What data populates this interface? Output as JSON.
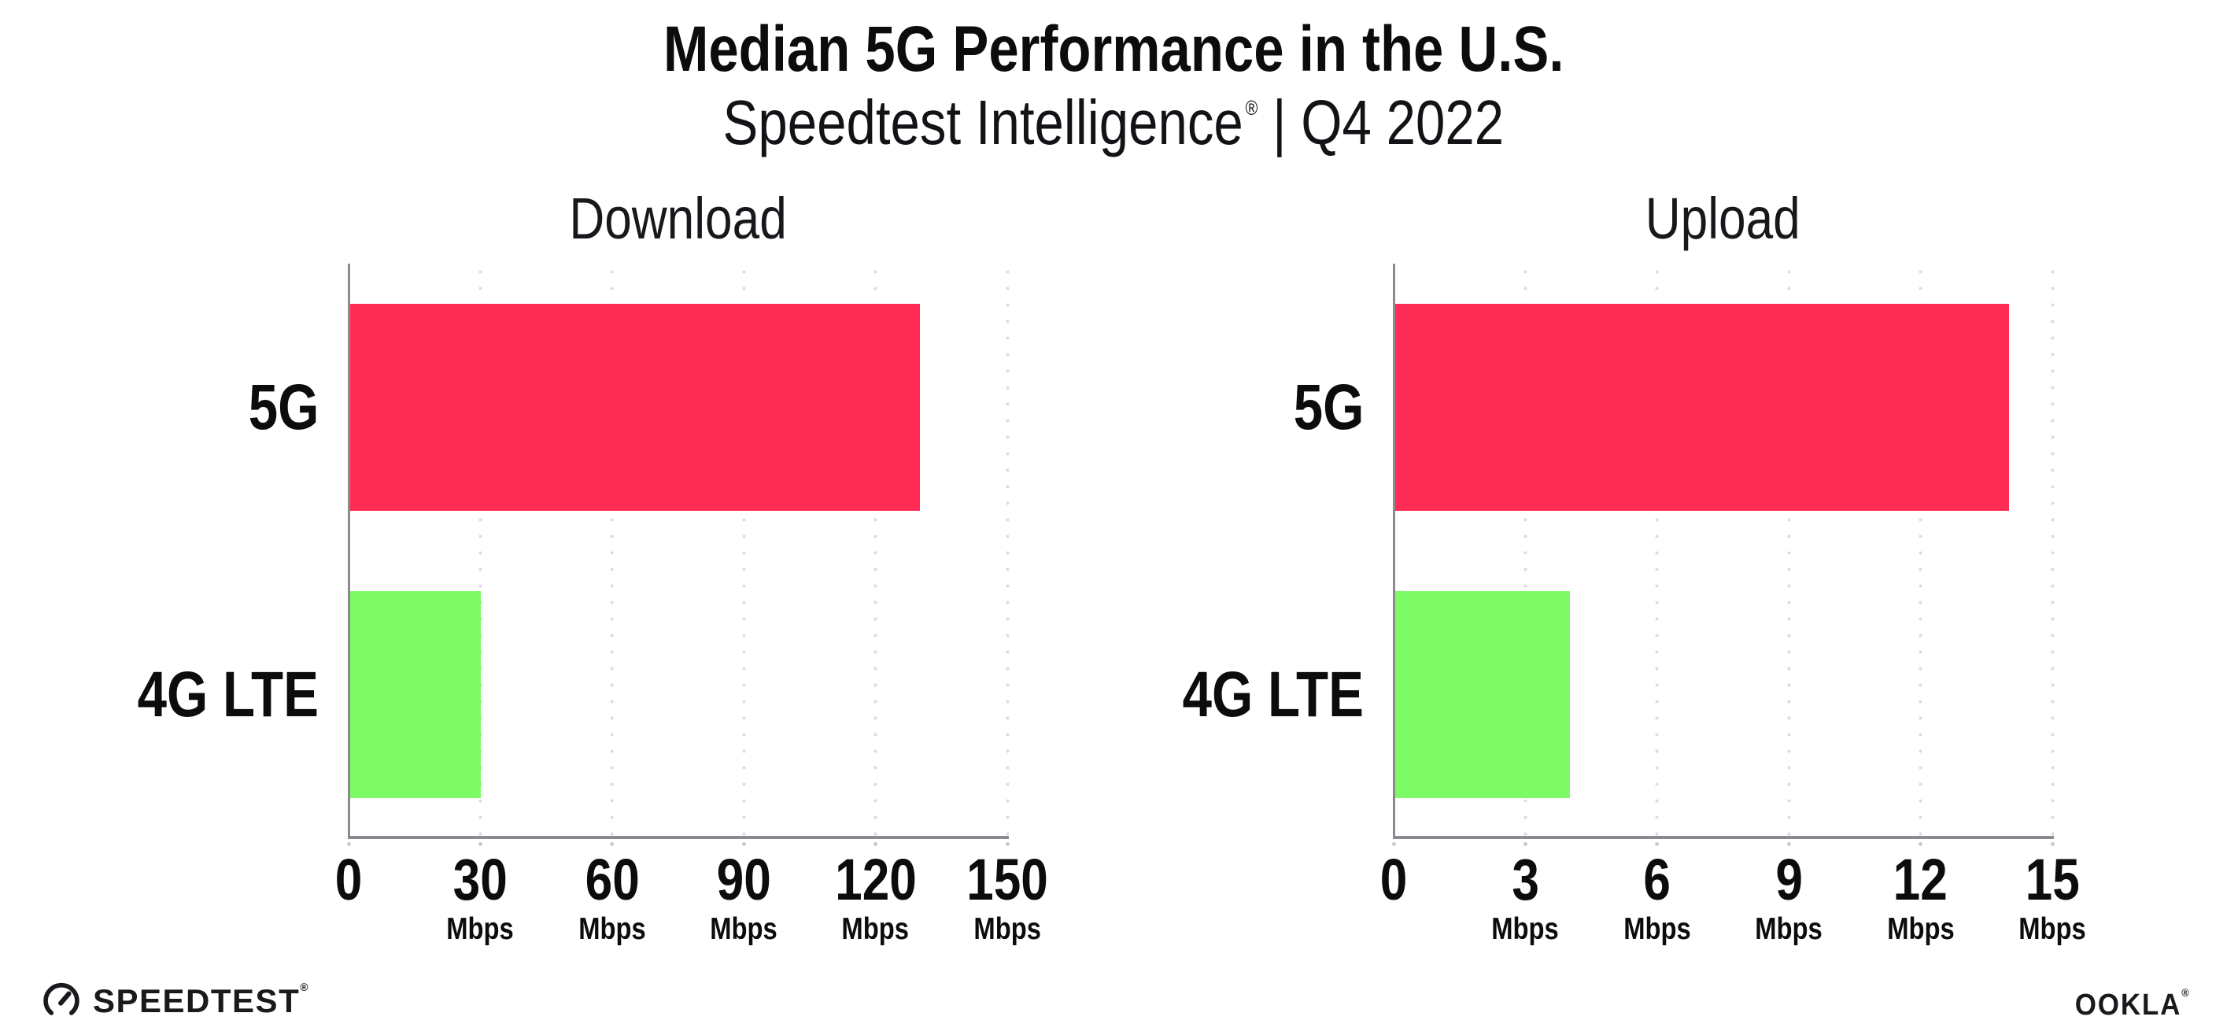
{
  "header": {
    "title": "Median 5G Performance in the U.S.",
    "subtitle_brand": "Speedtest Intelligence",
    "subtitle_registered": "®",
    "subtitle_suffix": "| Q4 2022"
  },
  "chart_data": [
    {
      "type": "bar",
      "orientation": "horizontal",
      "title": "Download",
      "categories": [
        "5G",
        "4G LTE"
      ],
      "values": [
        130,
        30
      ],
      "unit": "Mbps",
      "colors": [
        "#ff2d55",
        "#7dfa66"
      ],
      "xlim": [
        0,
        150
      ],
      "tick_values": [
        0,
        30,
        60,
        90,
        120,
        150
      ],
      "ticks": [
        {
          "label": "0",
          "unit": ""
        },
        {
          "label": "30",
          "unit": "Mbps"
        },
        {
          "label": "60",
          "unit": "Mbps"
        },
        {
          "label": "90",
          "unit": "Mbps"
        },
        {
          "label": "120",
          "unit": "Mbps"
        },
        {
          "label": "150",
          "unit": "Mbps"
        }
      ],
      "grid": "vertical-dotted",
      "legend": "none"
    },
    {
      "type": "bar",
      "orientation": "horizontal",
      "title": "Upload",
      "categories": [
        "5G",
        "4G LTE"
      ],
      "values": [
        14,
        4
      ],
      "unit": "Mbps",
      "colors": [
        "#ff2d55",
        "#7dfa66"
      ],
      "xlim": [
        0,
        15
      ],
      "tick_values": [
        0,
        3,
        6,
        9,
        12,
        15
      ],
      "ticks": [
        {
          "label": "0",
          "unit": ""
        },
        {
          "label": "3",
          "unit": "Mbps"
        },
        {
          "label": "6",
          "unit": "Mbps"
        },
        {
          "label": "9",
          "unit": "Mbps"
        },
        {
          "label": "12",
          "unit": "Mbps"
        },
        {
          "label": "15",
          "unit": "Mbps"
        }
      ],
      "grid": "vertical-dotted",
      "legend": "none"
    }
  ],
  "footer": {
    "speedtest_wordmark": "SPEEDTEST",
    "speedtest_registered": "®",
    "ookla_wordmark": "OOKLA",
    "ookla_registered": "®"
  },
  "colors": {
    "bar_5g": "#ff2d55",
    "bar_4g_lte": "#7dfa66",
    "axis": "#8a8a90",
    "gridline": "#dbdbe4",
    "text": "#0c0c0f"
  }
}
